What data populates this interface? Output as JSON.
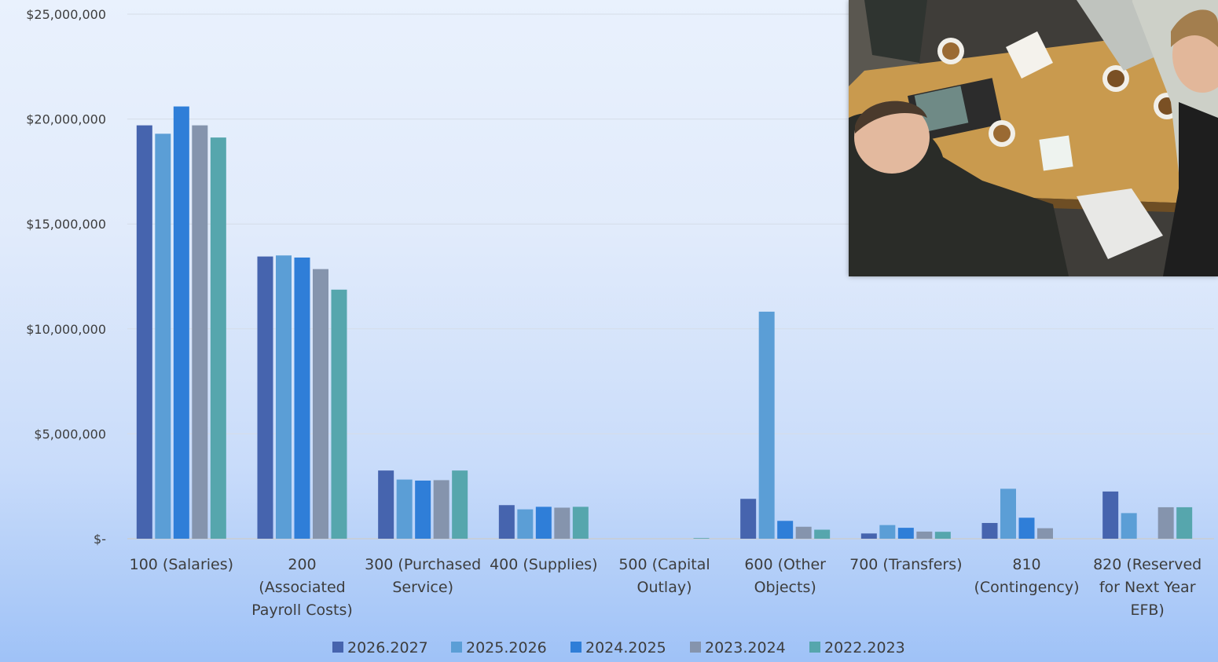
{
  "chart_data": {
    "type": "bar",
    "title": "",
    "xlabel": "",
    "ylabel": "",
    "ylim": [
      0,
      25000000
    ],
    "y_ticks": [
      0,
      5000000,
      10000000,
      15000000,
      20000000,
      25000000
    ],
    "y_tick_labels": [
      "$-",
      "$5,000,000",
      "$10,000,000",
      "$15,000,000",
      "$20,000,000",
      "$25,000,000"
    ],
    "grid": true,
    "legend_position": "bottom",
    "categories": [
      "100 (Salaries)",
      "200 (Associated Payroll Costs)",
      "300 (Purchased Service)",
      "400 (Supplies)",
      "500 (Capital Outlay)",
      "600 (Other Objects)",
      "700 (Transfers)",
      "810 (Contingency)",
      "820 (Reserved for Next Year EFB)"
    ],
    "category_lines": [
      [
        "100 (Salaries)"
      ],
      [
        "200",
        "(Associated",
        "Payroll Costs)"
      ],
      [
        "300 (Purchased",
        "Service)"
      ],
      [
        "400 (Supplies)"
      ],
      [
        "500 (Capital",
        "Outlay)"
      ],
      [
        "600 (Other",
        "Objects)"
      ],
      [
        "700 (Transfers)"
      ],
      [
        "810",
        "(Contingency)"
      ],
      [
        "820 (Reserved",
        "for Next Year",
        "EFB)"
      ]
    ],
    "series": [
      {
        "name": "2026.2027",
        "color": "#4664ae",
        "values": [
          19700000,
          13450000,
          3250000,
          1600000,
          0,
          1900000,
          250000,
          750000,
          2250000
        ]
      },
      {
        "name": "2025.2026",
        "color": "#5b9ed6",
        "values": [
          19300000,
          13500000,
          2820000,
          1400000,
          0,
          10820000,
          650000,
          2380000,
          1220000
        ]
      },
      {
        "name": "2024.2025",
        "color": "#2f7ed8",
        "values": [
          20600000,
          13400000,
          2770000,
          1520000,
          0,
          850000,
          520000,
          1000000,
          0
        ]
      },
      {
        "name": "2023.2024",
        "color": "#8594ad",
        "values": [
          19700000,
          12850000,
          2790000,
          1480000,
          0,
          570000,
          340000,
          500000,
          1500000
        ]
      },
      {
        "name": "2022.2023",
        "color": "#56a6ad",
        "values": [
          19120000,
          11870000,
          3250000,
          1520000,
          30000,
          430000,
          330000,
          0,
          1500000
        ]
      }
    ]
  },
  "photo": {
    "description": "classroom-photo"
  }
}
